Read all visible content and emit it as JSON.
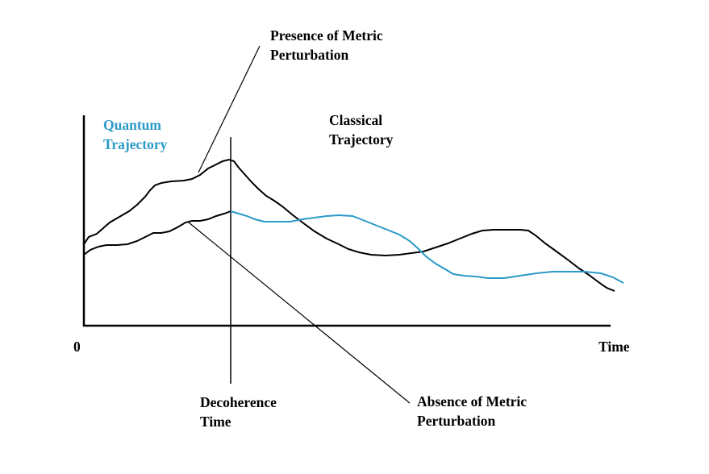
{
  "colors": {
    "black": "#000000",
    "quantum": "#2a9ac8",
    "background": "#ffffff"
  },
  "labels": {
    "origin": "0",
    "time_axis": "Time",
    "quantum_line1": "Quantum",
    "quantum_line2": "Trajectory",
    "classical_line1": "Classical",
    "classical_line2": "Trajectory",
    "presence_line1": "Presence of Metric",
    "presence_line2": "Perturbation",
    "absence_line1": "Absence of Metric",
    "absence_line2": "Perturbation",
    "decoherence_line1": "Decoherence",
    "decoherence_line2": "Time"
  }
}
